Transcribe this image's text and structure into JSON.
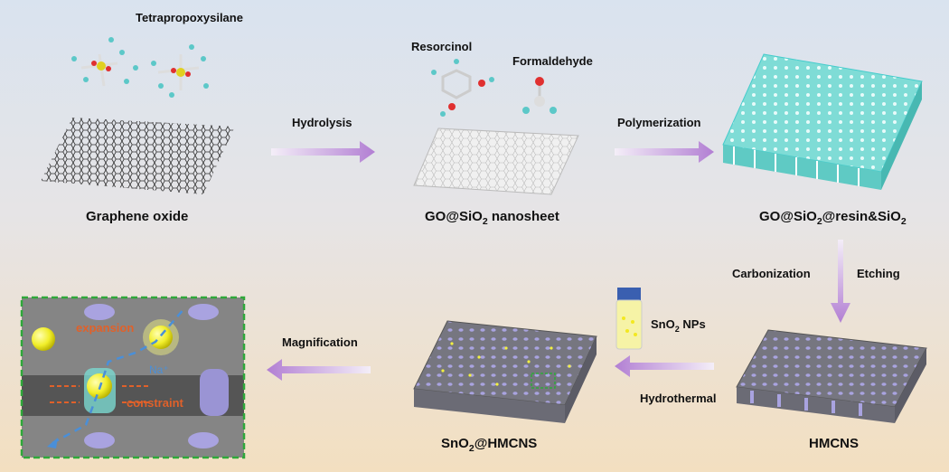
{
  "labels": {
    "tetrapropoxysilane": "Tetrapropoxysilane",
    "graphene_oxide": "Graphene oxide",
    "resorcinol": "Resorcinol",
    "formaldehyde": "Formaldehyde",
    "go_sio2_nanosheet": {
      "a": "GO@SiO",
      "sub": "2",
      "b": " nanosheet"
    },
    "go_sio2_resin_sio2": {
      "a": "GO@SiO",
      "sub1": "2",
      "b": "@resin&SiO",
      "sub2": "2"
    },
    "hmcns": "HMCNS",
    "sno2_hmcns": {
      "a": "SnO",
      "sub": "2",
      "b": "@HMCNS"
    },
    "sno2_nps": {
      "a": "SnO",
      "sub": "2",
      "b": " NPs"
    }
  },
  "steps": {
    "hydrolysis": "Hydrolysis",
    "polymerization": "Polymerization",
    "carbonization": "Carbonization",
    "etching": "Etching",
    "hydrothermal": "Hydrothermal",
    "magnification": "Magnification"
  },
  "inset": {
    "expansion": "expansion",
    "constraint": "constraint",
    "sodium_ion": "Na⁺"
  },
  "colors": {
    "arrow": "#b98ad6",
    "teal": "#5fd0cc",
    "carbon": "#6e6e78",
    "pore": "#a9a3e0",
    "sno2": "#f3f040",
    "inset_border": "#2fa83a",
    "orange": "#e0612a",
    "blue": "#4a8fd8"
  }
}
